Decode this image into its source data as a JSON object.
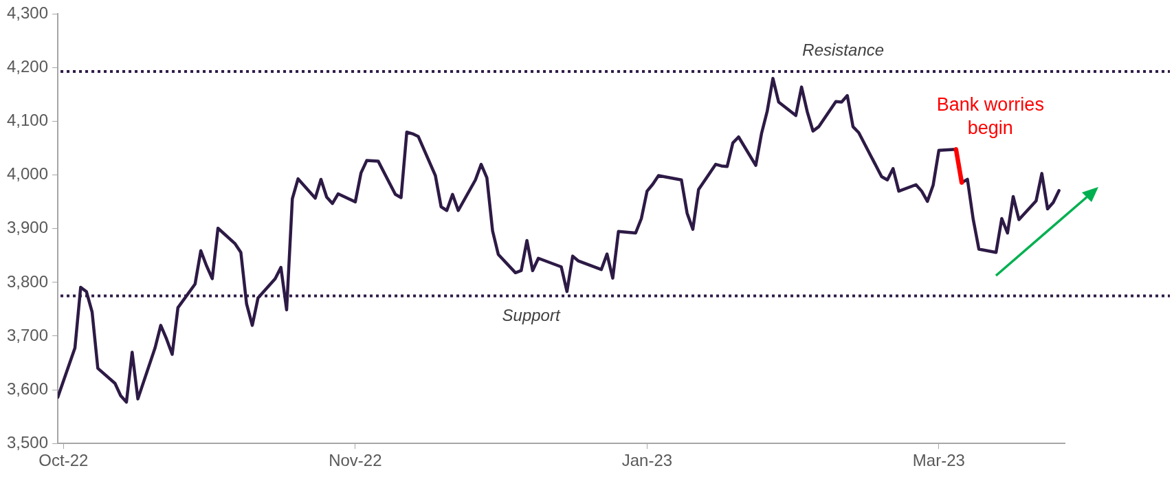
{
  "chart_data": {
    "type": "line",
    "legend": false,
    "grid": false,
    "marker": "none",
    "line_style": "solid",
    "x": [
      "2022-09-30",
      "2022-10-03",
      "2022-10-04",
      "2022-10-05",
      "2022-10-06",
      "2022-10-07",
      "2022-10-10",
      "2022-10-11",
      "2022-10-12",
      "2022-10-13",
      "2022-10-14",
      "2022-10-17",
      "2022-10-18",
      "2022-10-19",
      "2022-10-20",
      "2022-10-21",
      "2022-10-24",
      "2022-10-25",
      "2022-10-26",
      "2022-10-27",
      "2022-10-28",
      "2022-10-31",
      "2022-11-01",
      "2022-11-02",
      "2022-11-03",
      "2022-11-04",
      "2022-11-07",
      "2022-11-08",
      "2022-11-09",
      "2022-11-10",
      "2022-11-11",
      "2022-11-14",
      "2022-11-15",
      "2022-11-16",
      "2022-11-17",
      "2022-11-18",
      "2022-11-21",
      "2022-11-22",
      "2022-11-23",
      "2022-11-25",
      "2022-11-28",
      "2022-11-29",
      "2022-11-30",
      "2022-12-01",
      "2022-12-02",
      "2022-12-05",
      "2022-12-06",
      "2022-12-07",
      "2022-12-08",
      "2022-12-09",
      "2022-12-12",
      "2022-12-13",
      "2022-12-14",
      "2022-12-15",
      "2022-12-16",
      "2022-12-19",
      "2022-12-20",
      "2022-12-21",
      "2022-12-22",
      "2022-12-23",
      "2022-12-27",
      "2022-12-28",
      "2022-12-29",
      "2022-12-30",
      "2023-01-03",
      "2023-01-04",
      "2023-01-05",
      "2023-01-06",
      "2023-01-09",
      "2023-01-10",
      "2023-01-11",
      "2023-01-12",
      "2023-01-13",
      "2023-01-17",
      "2023-01-18",
      "2023-01-19",
      "2023-01-20",
      "2023-01-23",
      "2023-01-24",
      "2023-01-25",
      "2023-01-26",
      "2023-01-27",
      "2023-01-30",
      "2023-01-31",
      "2023-02-01",
      "2023-02-02",
      "2023-02-03",
      "2023-02-06",
      "2023-02-07",
      "2023-02-08",
      "2023-02-09",
      "2023-02-10",
      "2023-02-13",
      "2023-02-14",
      "2023-02-15",
      "2023-02-16",
      "2023-02-17",
      "2023-02-21",
      "2023-02-22",
      "2023-02-23",
      "2023-02-24",
      "2023-02-27",
      "2023-02-28",
      "2023-03-01",
      "2023-03-02",
      "2023-03-03",
      "2023-03-06",
      "2023-03-07",
      "2023-03-08",
      "2023-03-09",
      "2023-03-10",
      "2023-03-13",
      "2023-03-14",
      "2023-03-15",
      "2023-03-16",
      "2023-03-17",
      "2023-03-20",
      "2023-03-21",
      "2023-03-22",
      "2023-03-23",
      "2023-03-24"
    ],
    "series": [
      {
        "color": "#2d1a45",
        "values": [
          3586,
          3678,
          3791,
          3783,
          3745,
          3640,
          3612,
          3589,
          3577,
          3670,
          3583,
          3678,
          3720,
          3695,
          3666,
          3753,
          3797,
          3859,
          3831,
          3807,
          3901,
          3872,
          3856,
          3760,
          3720,
          3771,
          3807,
          3828,
          3749,
          3956,
          3993,
          3957,
          3992,
          3959,
          3947,
          3965,
          3950,
          4004,
          4027,
          4026,
          3964,
          3958,
          4080,
          4077,
          4072,
          3999,
          3941,
          3934,
          3964,
          3934,
          3991,
          4020,
          3995,
          3896,
          3852,
          3818,
          3822,
          3878,
          3822,
          3845,
          3829,
          3783,
          3849,
          3840,
          3824,
          3853,
          3808,
          3895,
          3892,
          3919,
          3970,
          3983,
          3999,
          3991,
          3929,
          3899,
          3973,
          4020,
          4017,
          4016,
          4060,
          4071,
          4018,
          4077,
          4119,
          4180,
          4136,
          4111,
          4164,
          4118,
          4082,
          4090,
          4137,
          4136,
          4148,
          4090,
          4079,
          3997,
          3991,
          4012,
          3970,
          3982,
          3970,
          3951,
          3981,
          4046,
          4048,
          3986,
          3992,
          3918,
          3862,
          3856,
          3919,
          3892,
          3960,
          3917,
          3952,
          4003,
          3937,
          3949,
          3971
        ]
      },
      {
        "color": "#ff0000",
        "x": [
          "2023-03-06",
          "2023-03-07"
        ],
        "values": [
          4048,
          3986
        ]
      }
    ],
    "xlim": [
      "2022-09-30",
      "2023-03-25"
    ],
    "xticks": [
      {
        "value": "2022-10-01",
        "label": "Oct-22"
      },
      {
        "value": "2022-11-21",
        "label": "Nov-22"
      },
      {
        "value": "2023-01-11",
        "label": "Jan-23"
      },
      {
        "value": "2023-03-03",
        "label": "Mar-23"
      }
    ],
    "ylim": [
      3500,
      4300
    ],
    "yticks": [
      {
        "value": 3500,
        "label": "3,500"
      },
      {
        "value": 3600,
        "label": "3,600"
      },
      {
        "value": 3700,
        "label": "3,700"
      },
      {
        "value": 3800,
        "label": "3,800"
      },
      {
        "value": 3900,
        "label": "3,900"
      },
      {
        "value": 4000,
        "label": "4,000"
      },
      {
        "value": 4100,
        "label": "4,100"
      },
      {
        "value": 4200,
        "label": "4,200"
      },
      {
        "value": 4300,
        "label": "4,300"
      }
    ],
    "ref_lines": [
      {
        "axis": "y",
        "value": 4193,
        "label": "Resistance",
        "color": "#2d1a45",
        "line_style": "dotted"
      },
      {
        "axis": "y",
        "value": 3775,
        "label": "Support",
        "color": "#2d1a45",
        "line_style": "dotted"
      }
    ],
    "annotations": [
      {
        "text": "Bank worries begin",
        "x": "2023-03-06",
        "y": 4048
      }
    ]
  }
}
